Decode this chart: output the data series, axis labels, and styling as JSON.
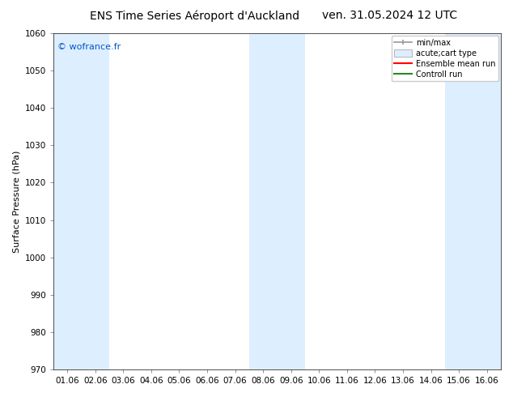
{
  "title_left": "ENS Time Series Aéroport d'Auckland",
  "title_right": "ven. 31.05.2024 12 UTC",
  "ylabel": "Surface Pressure (hPa)",
  "ylim": [
    970,
    1060
  ],
  "yticks": [
    970,
    980,
    990,
    1000,
    1010,
    1020,
    1030,
    1040,
    1050,
    1060
  ],
  "x_labels": [
    "01.06",
    "02.06",
    "03.06",
    "04.06",
    "05.06",
    "06.06",
    "07.06",
    "08.06",
    "09.06",
    "10.06",
    "11.06",
    "12.06",
    "13.06",
    "14.06",
    "15.06",
    "16.06"
  ],
  "watermark": "© wofrance.fr",
  "watermark_color": "#0055cc",
  "bg_color": "#ffffff",
  "band_color": "#ddeeff",
  "shaded_columns": [
    0,
    1,
    7,
    8,
    14,
    15
  ],
  "legend_entries": [
    "min/max",
    "acute;cart type",
    "Ensemble mean run",
    "Controll run"
  ],
  "ensemble_mean_color": "#ff0000",
  "control_run_color": "#228b22",
  "title_fontsize": 10,
  "tick_fontsize": 7.5,
  "ylabel_fontsize": 8,
  "watermark_fontsize": 8
}
